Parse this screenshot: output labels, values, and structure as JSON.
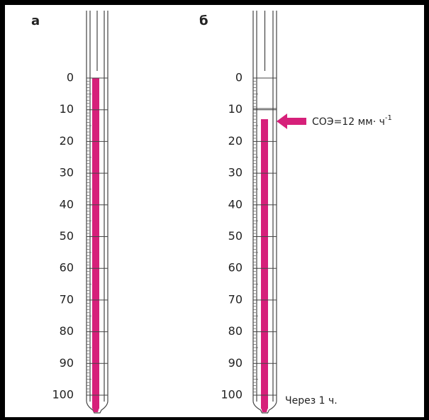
{
  "panels": [
    {
      "letter": "а",
      "scale": [
        "0",
        "10",
        "20",
        "30",
        "40",
        "50",
        "60",
        "70",
        "80",
        "90",
        "100"
      ]
    },
    {
      "letter": "б",
      "scale": [
        "0",
        "10",
        "20",
        "30",
        "40",
        "50",
        "60",
        "70",
        "80",
        "90",
        "100"
      ]
    }
  ],
  "annotation": {
    "text": "СОЭ=12 мм· ч",
    "superscript": "-1"
  },
  "caption": "Через 1 ч."
}
